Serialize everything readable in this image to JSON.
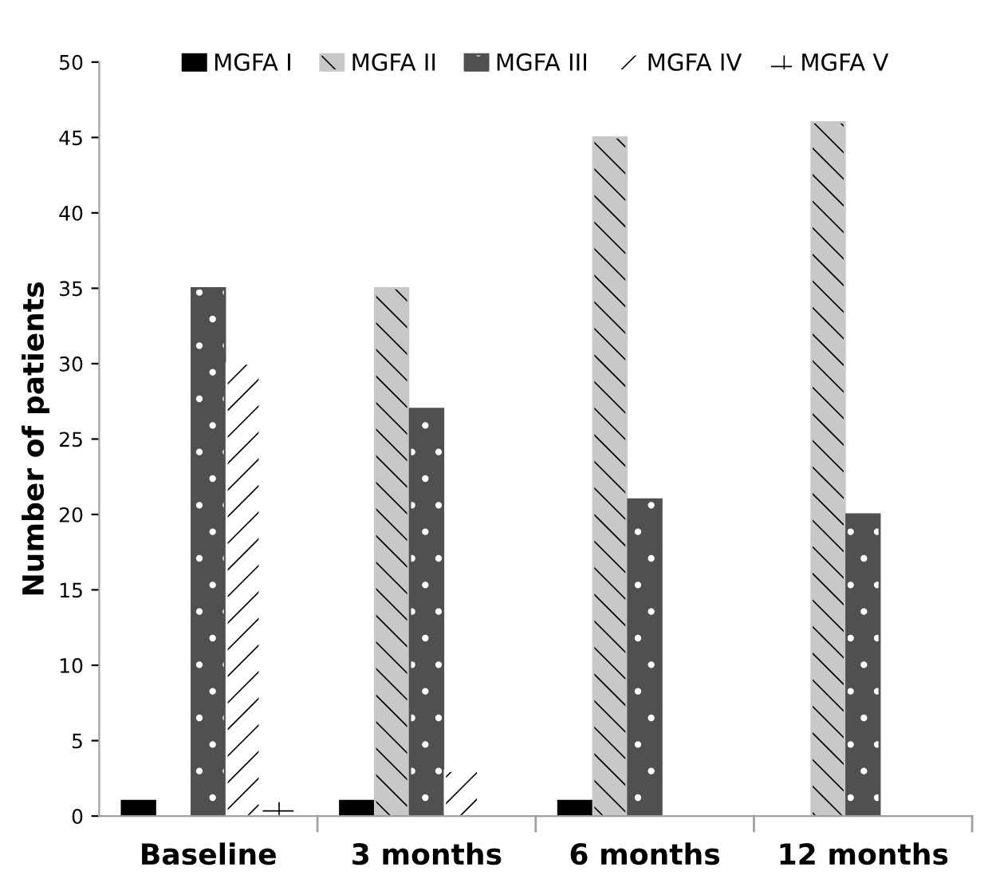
{
  "chart_data": {
    "type": "bar",
    "ylabel": "Number of patients",
    "categories": [
      "Baseline",
      "3 months",
      "6 months",
      "12 months"
    ],
    "series": [
      {
        "name": "MGFA I",
        "color": "#000000",
        "values": [
          1,
          1,
          1,
          null
        ]
      },
      {
        "name": "MGFA II",
        "color": "#c8c8c8",
        "values": [
          null,
          35,
          45,
          46
        ]
      },
      {
        "name": "MGFA III",
        "color": "#505050",
        "values": [
          35,
          27,
          21,
          20
        ]
      },
      {
        "name": "MGFA IV",
        "color": "#ffffff",
        "values": [
          30,
          3,
          null,
          null
        ]
      },
      {
        "name": "MGFA V",
        "color": "#ffffff",
        "values": [
          1,
          null,
          null,
          null
        ]
      }
    ],
    "ylim": [
      0,
      50
    ],
    "yticks": [
      0,
      5,
      10,
      15,
      20,
      25,
      30,
      35,
      40,
      45,
      50
    ],
    "grid": false,
    "legend": "top"
  }
}
